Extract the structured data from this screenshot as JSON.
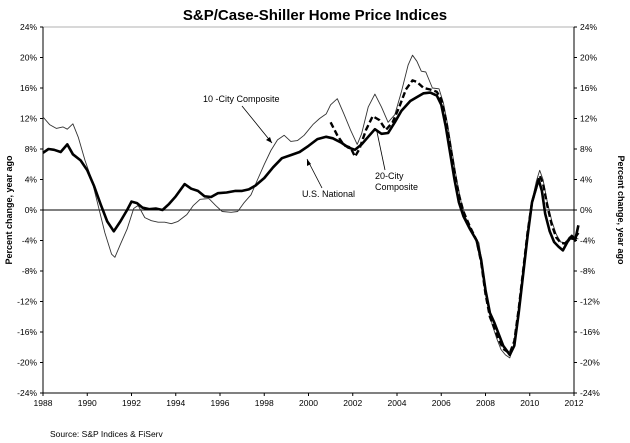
{
  "chart_data": {
    "type": "line",
    "title": "S&P/Case-Shiller Home Price Indices",
    "xlabel": "",
    "ylabel": "Percent change, year ago",
    "ylabel_right": "Percent change, year ago",
    "xlim": [
      1988,
      2012.4
    ],
    "ylim": [
      -24,
      24
    ],
    "x_ticks": [
      1988,
      1990,
      1992,
      1994,
      1996,
      1998,
      2000,
      2002,
      2004,
      2006,
      2008,
      2010,
      2012
    ],
    "x_tick_labels": [
      "1988",
      "1990",
      "1992",
      "1994",
      "1996",
      "1998",
      "2000",
      "2002",
      "2004",
      "2006",
      "2008",
      "2010",
      "2012"
    ],
    "y_ticks": [
      24,
      20,
      16,
      12,
      8,
      4,
      0,
      -4,
      -8,
      -12,
      -16,
      -20,
      -24
    ],
    "y_tick_labels": [
      "24%",
      "20%",
      "16%",
      "12%",
      "8%",
      "4%",
      "0%",
      "-4%",
      "-8%",
      "-12%",
      "-16%",
      "-20%",
      "-24%"
    ],
    "grid": false,
    "zero_line": true,
    "legend": "none (inline annotations)",
    "source": "Source: S&P Indices & FiServ",
    "series": [
      {
        "name": "U.S. National",
        "style": "thick-solid",
        "points": [
          [
            1988.0,
            7.5
          ],
          [
            1988.25,
            8.0
          ],
          [
            1988.5,
            7.9
          ],
          [
            1988.8,
            7.6
          ],
          [
            1989.1,
            8.6
          ],
          [
            1989.35,
            7.3
          ],
          [
            1989.7,
            6.5
          ],
          [
            1990.0,
            5.2
          ],
          [
            1990.3,
            3.2
          ],
          [
            1990.6,
            0.8
          ],
          [
            1990.9,
            -1.5
          ],
          [
            1991.2,
            -2.8
          ],
          [
            1991.5,
            -1.5
          ],
          [
            1991.8,
            0.0
          ],
          [
            1992.0,
            1.1
          ],
          [
            1992.25,
            0.9
          ],
          [
            1992.5,
            0.3
          ],
          [
            1992.8,
            0.1
          ],
          [
            1993.1,
            0.2
          ],
          [
            1993.4,
            0.0
          ],
          [
            1993.7,
            0.8
          ],
          [
            1994.0,
            1.8
          ],
          [
            1994.4,
            3.4
          ],
          [
            1994.7,
            2.8
          ],
          [
            1995.0,
            2.5
          ],
          [
            1995.3,
            1.8
          ],
          [
            1995.6,
            1.7
          ],
          [
            1995.9,
            2.2
          ],
          [
            1996.3,
            2.3
          ],
          [
            1996.7,
            2.5
          ],
          [
            1997.0,
            2.5
          ],
          [
            1997.3,
            2.7
          ],
          [
            1997.6,
            3.2
          ],
          [
            1998.0,
            4.2
          ],
          [
            1998.4,
            5.6
          ],
          [
            1998.8,
            6.8
          ],
          [
            1999.2,
            7.2
          ],
          [
            1999.6,
            7.6
          ],
          [
            2000.0,
            8.4
          ],
          [
            2000.4,
            9.3
          ],
          [
            2000.8,
            9.6
          ],
          [
            2001.1,
            9.4
          ],
          [
            2001.5,
            8.8
          ],
          [
            2001.8,
            8.2
          ],
          [
            2002.1,
            7.9
          ],
          [
            2002.4,
            8.6
          ],
          [
            2002.7,
            9.6
          ],
          [
            2003.0,
            10.6
          ],
          [
            2003.3,
            10.0
          ],
          [
            2003.6,
            10.1
          ],
          [
            2003.9,
            11.5
          ],
          [
            2004.2,
            13.0
          ],
          [
            2004.6,
            14.3
          ],
          [
            2004.9,
            14.8
          ],
          [
            2005.2,
            15.3
          ],
          [
            2005.5,
            15.4
          ],
          [
            2005.8,
            15.0
          ],
          [
            2006.0,
            13.8
          ],
          [
            2006.2,
            11.0
          ],
          [
            2006.4,
            7.5
          ],
          [
            2006.6,
            4.0
          ],
          [
            2006.8,
            1.0
          ],
          [
            2007.0,
            -0.8
          ],
          [
            2007.3,
            -2.5
          ],
          [
            2007.6,
            -4.0
          ],
          [
            2007.8,
            -6.5
          ],
          [
            2008.0,
            -10.5
          ],
          [
            2008.2,
            -13.5
          ],
          [
            2008.4,
            -14.8
          ],
          [
            2008.6,
            -16.3
          ],
          [
            2008.8,
            -17.8
          ],
          [
            2009.1,
            -19.0
          ],
          [
            2009.3,
            -17.8
          ],
          [
            2009.5,
            -13.5
          ],
          [
            2009.7,
            -8.5
          ],
          [
            2009.9,
            -3.5
          ],
          [
            2010.1,
            1.0
          ],
          [
            2010.25,
            2.5
          ],
          [
            2010.4,
            4.0
          ],
          [
            2010.55,
            2.5
          ],
          [
            2010.7,
            -0.5
          ],
          [
            2010.9,
            -2.8
          ],
          [
            2011.1,
            -4.2
          ],
          [
            2011.3,
            -4.8
          ],
          [
            2011.5,
            -5.3
          ],
          [
            2011.7,
            -4.2
          ],
          [
            2011.9,
            -3.4
          ],
          [
            2012.05,
            -4.0
          ],
          [
            2012.2,
            -2.0
          ]
        ]
      },
      {
        "name": "10 -City Composite",
        "style": "thin-solid",
        "points": [
          [
            1988.0,
            12.2
          ],
          [
            1988.3,
            11.2
          ],
          [
            1988.6,
            10.7
          ],
          [
            1988.9,
            10.9
          ],
          [
            1989.1,
            10.6
          ],
          [
            1989.35,
            11.3
          ],
          [
            1989.6,
            9.5
          ],
          [
            1989.9,
            6.5
          ],
          [
            1990.2,
            4.0
          ],
          [
            1990.5,
            0.5
          ],
          [
            1990.8,
            -3.0
          ],
          [
            1991.1,
            -5.8
          ],
          [
            1991.25,
            -6.2
          ],
          [
            1991.5,
            -4.5
          ],
          [
            1991.8,
            -2.5
          ],
          [
            1992.1,
            0.2
          ],
          [
            1992.3,
            0.6
          ],
          [
            1992.6,
            -1.0
          ],
          [
            1992.9,
            -1.4
          ],
          [
            1993.2,
            -1.6
          ],
          [
            1993.5,
            -1.6
          ],
          [
            1993.8,
            -1.8
          ],
          [
            1994.1,
            -1.5
          ],
          [
            1994.5,
            -0.6
          ],
          [
            1994.8,
            0.6
          ],
          [
            1995.1,
            1.4
          ],
          [
            1995.5,
            1.5
          ],
          [
            1995.8,
            0.6
          ],
          [
            1996.1,
            -0.2
          ],
          [
            1996.5,
            -0.3
          ],
          [
            1996.8,
            -0.2
          ],
          [
            1997.1,
            1.0
          ],
          [
            1997.4,
            2.0
          ],
          [
            1997.7,
            4.0
          ],
          [
            1998.0,
            6.0
          ],
          [
            1998.3,
            7.8
          ],
          [
            1998.6,
            9.2
          ],
          [
            1998.9,
            9.8
          ],
          [
            1999.2,
            9.0
          ],
          [
            1999.5,
            9.1
          ],
          [
            1999.8,
            9.8
          ],
          [
            2000.2,
            11.2
          ],
          [
            2000.5,
            12.0
          ],
          [
            2000.8,
            12.6
          ],
          [
            2001.0,
            13.8
          ],
          [
            2001.3,
            14.6
          ],
          [
            2001.6,
            12.6
          ],
          [
            2001.9,
            10.5
          ],
          [
            2002.2,
            8.6
          ],
          [
            2002.4,
            10.0
          ],
          [
            2002.7,
            13.5
          ],
          [
            2003.0,
            15.2
          ],
          [
            2003.3,
            13.5
          ],
          [
            2003.6,
            11.5
          ],
          [
            2003.9,
            12.5
          ],
          [
            2004.2,
            15.5
          ],
          [
            2004.5,
            19.0
          ],
          [
            2004.7,
            20.3
          ],
          [
            2004.9,
            19.5
          ],
          [
            2005.1,
            18.2
          ],
          [
            2005.3,
            18.1
          ],
          [
            2005.6,
            16.0
          ],
          [
            2005.9,
            15.9
          ],
          [
            2006.1,
            14.0
          ],
          [
            2006.3,
            11.0
          ],
          [
            2006.5,
            7.5
          ],
          [
            2006.7,
            4.0
          ],
          [
            2006.9,
            1.0
          ],
          [
            2007.1,
            -1.0
          ],
          [
            2007.4,
            -2.8
          ],
          [
            2007.7,
            -4.3
          ],
          [
            2007.9,
            -8.0
          ],
          [
            2008.1,
            -12.0
          ],
          [
            2008.3,
            -15.0
          ],
          [
            2008.5,
            -16.8
          ],
          [
            2008.7,
            -18.3
          ],
          [
            2008.9,
            -19.0
          ],
          [
            2009.1,
            -19.4
          ],
          [
            2009.3,
            -17.5
          ],
          [
            2009.5,
            -13.0
          ],
          [
            2009.7,
            -8.0
          ],
          [
            2009.9,
            -3.0
          ],
          [
            2010.1,
            1.2
          ],
          [
            2010.3,
            3.8
          ],
          [
            2010.45,
            5.2
          ],
          [
            2010.6,
            4.0
          ],
          [
            2010.8,
            1.0
          ],
          [
            2011.0,
            -1.5
          ],
          [
            2011.2,
            -3.2
          ],
          [
            2011.4,
            -4.2
          ],
          [
            2011.6,
            -4.3
          ],
          [
            2011.8,
            -3.5
          ],
          [
            2012.0,
            -3.6
          ],
          [
            2012.2,
            -3.8
          ]
        ]
      },
      {
        "name": "20-City Composite",
        "style": "thick-dashed",
        "points": [
          [
            2001.0,
            11.5
          ],
          [
            2001.3,
            9.8
          ],
          [
            2001.6,
            8.5
          ],
          [
            2001.9,
            8.2
          ],
          [
            2002.1,
            7.0
          ],
          [
            2002.3,
            8.0
          ],
          [
            2002.6,
            10.5
          ],
          [
            2002.9,
            12.3
          ],
          [
            2003.2,
            11.8
          ],
          [
            2003.5,
            10.5
          ],
          [
            2003.8,
            11.5
          ],
          [
            2004.1,
            13.5
          ],
          [
            2004.4,
            15.8
          ],
          [
            2004.7,
            17.0
          ],
          [
            2004.9,
            16.8
          ],
          [
            2005.2,
            16.0
          ],
          [
            2005.5,
            15.8
          ],
          [
            2005.8,
            15.5
          ],
          [
            2006.0,
            14.5
          ],
          [
            2006.2,
            12.0
          ],
          [
            2006.4,
            8.5
          ],
          [
            2006.6,
            5.0
          ],
          [
            2006.8,
            2.0
          ],
          [
            2007.0,
            -0.2
          ],
          [
            2007.3,
            -2.2
          ],
          [
            2007.6,
            -4.0
          ],
          [
            2007.8,
            -6.8
          ],
          [
            2008.0,
            -11.0
          ],
          [
            2008.2,
            -14.0
          ],
          [
            2008.4,
            -15.5
          ],
          [
            2008.6,
            -17.0
          ],
          [
            2008.8,
            -18.2
          ],
          [
            2009.1,
            -18.8
          ],
          [
            2009.3,
            -17.2
          ],
          [
            2009.5,
            -13.0
          ],
          [
            2009.7,
            -8.0
          ],
          [
            2009.9,
            -3.0
          ],
          [
            2010.1,
            1.0
          ],
          [
            2010.3,
            3.0
          ],
          [
            2010.45,
            4.5
          ],
          [
            2010.6,
            3.5
          ],
          [
            2010.8,
            0.5
          ],
          [
            2011.0,
            -2.0
          ],
          [
            2011.2,
            -3.6
          ],
          [
            2011.4,
            -4.3
          ],
          [
            2011.6,
            -4.4
          ],
          [
            2011.8,
            -3.7
          ],
          [
            2012.0,
            -3.8
          ],
          [
            2012.2,
            -3.0
          ]
        ]
      }
    ],
    "annotations": [
      {
        "text": "10 -City Composite",
        "points_to": "10 -City Composite",
        "at": [
          1999.1,
          9.6
        ]
      },
      {
        "text": "U.S. National",
        "points_to": "U.S. National",
        "at": [
          2000.3,
          8.0
        ]
      },
      {
        "text_lines": [
          "20-City",
          "Composite"
        ],
        "points_to": "20-City Composite",
        "at": [
          2003.1,
          12.3
        ]
      }
    ]
  }
}
